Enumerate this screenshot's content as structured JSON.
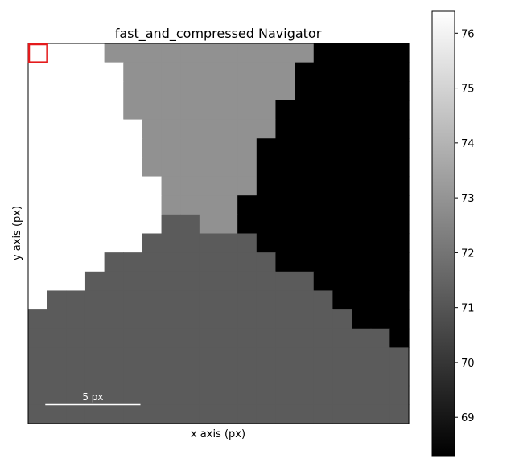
{
  "chart_data": {
    "type": "heatmap",
    "title": "fast_and_compressed Navigator",
    "xlabel": "x axis (px)",
    "ylabel": "y axis (px)",
    "grid_shape": [
      20,
      20
    ],
    "colormap": "gray",
    "value_range": [
      68.3,
      76.4
    ],
    "colorbar_ticks": [
      69,
      70,
      71,
      72,
      73,
      74,
      75,
      76
    ],
    "colorbar_tick_labels": [
      "69",
      "70",
      "71",
      "72",
      "73",
      "74",
      "75",
      "76"
    ],
    "levels": {
      "white": 76.4,
      "light_gray": 72.9,
      "dark_gray": 71.2,
      "black": 68.3
    },
    "grid": [
      [
        "white",
        "white",
        "white",
        "white",
        "light_gray",
        "light_gray",
        "light_gray",
        "light_gray",
        "light_gray",
        "light_gray",
        "light_gray",
        "light_gray",
        "light_gray",
        "light_gray",
        "light_gray",
        "black",
        "black",
        "black",
        "black",
        "black"
      ],
      [
        "white",
        "white",
        "white",
        "white",
        "white",
        "light_gray",
        "light_gray",
        "light_gray",
        "light_gray",
        "light_gray",
        "light_gray",
        "light_gray",
        "light_gray",
        "light_gray",
        "black",
        "black",
        "black",
        "black",
        "black",
        "black"
      ],
      [
        "white",
        "white",
        "white",
        "white",
        "white",
        "light_gray",
        "light_gray",
        "light_gray",
        "light_gray",
        "light_gray",
        "light_gray",
        "light_gray",
        "light_gray",
        "light_gray",
        "black",
        "black",
        "black",
        "black",
        "black",
        "black"
      ],
      [
        "white",
        "white",
        "white",
        "white",
        "white",
        "light_gray",
        "light_gray",
        "light_gray",
        "light_gray",
        "light_gray",
        "light_gray",
        "light_gray",
        "light_gray",
        "black",
        "black",
        "black",
        "black",
        "black",
        "black",
        "black"
      ],
      [
        "white",
        "white",
        "white",
        "white",
        "white",
        "white",
        "light_gray",
        "light_gray",
        "light_gray",
        "light_gray",
        "light_gray",
        "light_gray",
        "light_gray",
        "black",
        "black",
        "black",
        "black",
        "black",
        "black",
        "black"
      ],
      [
        "white",
        "white",
        "white",
        "white",
        "white",
        "white",
        "light_gray",
        "light_gray",
        "light_gray",
        "light_gray",
        "light_gray",
        "light_gray",
        "black",
        "black",
        "black",
        "black",
        "black",
        "black",
        "black",
        "black"
      ],
      [
        "white",
        "white",
        "white",
        "white",
        "white",
        "white",
        "light_gray",
        "light_gray",
        "light_gray",
        "light_gray",
        "light_gray",
        "light_gray",
        "black",
        "black",
        "black",
        "black",
        "black",
        "black",
        "black",
        "black"
      ],
      [
        "white",
        "white",
        "white",
        "white",
        "white",
        "white",
        "white",
        "light_gray",
        "light_gray",
        "light_gray",
        "light_gray",
        "light_gray",
        "black",
        "black",
        "black",
        "black",
        "black",
        "black",
        "black",
        "black"
      ],
      [
        "white",
        "white",
        "white",
        "white",
        "white",
        "white",
        "white",
        "light_gray",
        "light_gray",
        "light_gray",
        "light_gray",
        "black",
        "black",
        "black",
        "black",
        "black",
        "black",
        "black",
        "black",
        "black"
      ],
      [
        "white",
        "white",
        "white",
        "white",
        "white",
        "white",
        "white",
        "dark_gray",
        "dark_gray",
        "light_gray",
        "light_gray",
        "black",
        "black",
        "black",
        "black",
        "black",
        "black",
        "black",
        "black",
        "black"
      ],
      [
        "white",
        "white",
        "white",
        "white",
        "white",
        "white",
        "dark_gray",
        "dark_gray",
        "dark_gray",
        "dark_gray",
        "dark_gray",
        "dark_gray",
        "black",
        "black",
        "black",
        "black",
        "black",
        "black",
        "black",
        "black"
      ],
      [
        "white",
        "white",
        "white",
        "white",
        "dark_gray",
        "dark_gray",
        "dark_gray",
        "dark_gray",
        "dark_gray",
        "dark_gray",
        "dark_gray",
        "dark_gray",
        "dark_gray",
        "black",
        "black",
        "black",
        "black",
        "black",
        "black",
        "black"
      ],
      [
        "white",
        "white",
        "white",
        "dark_gray",
        "dark_gray",
        "dark_gray",
        "dark_gray",
        "dark_gray",
        "dark_gray",
        "dark_gray",
        "dark_gray",
        "dark_gray",
        "dark_gray",
        "dark_gray",
        "dark_gray",
        "black",
        "black",
        "black",
        "black",
        "black"
      ],
      [
        "white",
        "dark_gray",
        "dark_gray",
        "dark_gray",
        "dark_gray",
        "dark_gray",
        "dark_gray",
        "dark_gray",
        "dark_gray",
        "dark_gray",
        "dark_gray",
        "dark_gray",
        "dark_gray",
        "dark_gray",
        "dark_gray",
        "dark_gray",
        "black",
        "black",
        "black",
        "black"
      ],
      [
        "dark_gray",
        "dark_gray",
        "dark_gray",
        "dark_gray",
        "dark_gray",
        "dark_gray",
        "dark_gray",
        "dark_gray",
        "dark_gray",
        "dark_gray",
        "dark_gray",
        "dark_gray",
        "dark_gray",
        "dark_gray",
        "dark_gray",
        "dark_gray",
        "dark_gray",
        "black",
        "black",
        "black"
      ],
      [
        "dark_gray",
        "dark_gray",
        "dark_gray",
        "dark_gray",
        "dark_gray",
        "dark_gray",
        "dark_gray",
        "dark_gray",
        "dark_gray",
        "dark_gray",
        "dark_gray",
        "dark_gray",
        "dark_gray",
        "dark_gray",
        "dark_gray",
        "dark_gray",
        "dark_gray",
        "dark_gray",
        "dark_gray",
        "black"
      ],
      [
        "dark_gray",
        "dark_gray",
        "dark_gray",
        "dark_gray",
        "dark_gray",
        "dark_gray",
        "dark_gray",
        "dark_gray",
        "dark_gray",
        "dark_gray",
        "dark_gray",
        "dark_gray",
        "dark_gray",
        "dark_gray",
        "dark_gray",
        "dark_gray",
        "dark_gray",
        "dark_gray",
        "dark_gray",
        "dark_gray"
      ],
      [
        "dark_gray",
        "dark_gray",
        "dark_gray",
        "dark_gray",
        "dark_gray",
        "dark_gray",
        "dark_gray",
        "dark_gray",
        "dark_gray",
        "dark_gray",
        "dark_gray",
        "dark_gray",
        "dark_gray",
        "dark_gray",
        "dark_gray",
        "dark_gray",
        "dark_gray",
        "dark_gray",
        "dark_gray",
        "dark_gray"
      ],
      [
        "dark_gray",
        "dark_gray",
        "dark_gray",
        "dark_gray",
        "dark_gray",
        "dark_gray",
        "dark_gray",
        "dark_gray",
        "dark_gray",
        "dark_gray",
        "dark_gray",
        "dark_gray",
        "dark_gray",
        "dark_gray",
        "dark_gray",
        "dark_gray",
        "dark_gray",
        "dark_gray",
        "dark_gray",
        "dark_gray"
      ],
      [
        "dark_gray",
        "dark_gray",
        "dark_gray",
        "dark_gray",
        "dark_gray",
        "dark_gray",
        "dark_gray",
        "dark_gray",
        "dark_gray",
        "dark_gray",
        "dark_gray",
        "dark_gray",
        "dark_gray",
        "dark_gray",
        "dark_gray",
        "dark_gray",
        "dark_gray",
        "dark_gray",
        "dark_gray",
        "dark_gray"
      ]
    ],
    "selection_marker": {
      "row": 0,
      "col": 0,
      "color": "#e41a1c"
    },
    "scalebar": {
      "label": "5 px",
      "length_px": 5,
      "color": "#ffffff"
    }
  }
}
